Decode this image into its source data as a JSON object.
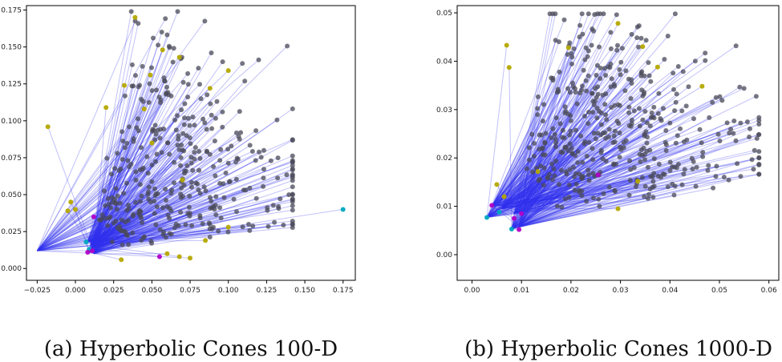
{
  "chart_data": [
    {
      "type": "scatter",
      "title": "",
      "caption": "(a) Hyperbolic Cones 100-D",
      "xlabel": "",
      "ylabel": "",
      "xlim": [
        -0.032,
        0.183
      ],
      "ylim": [
        -0.008,
        0.178
      ],
      "xticks": [
        -0.025,
        0.0,
        0.025,
        0.05,
        0.075,
        0.1,
        0.125,
        0.15,
        0.175
      ],
      "xtick_labels": [
        "−0.025",
        "0.000",
        "0.025",
        "0.050",
        "0.075",
        "0.100",
        "0.125",
        "0.150",
        "0.175"
      ],
      "yticks": [
        0.0,
        0.025,
        0.05,
        0.075,
        0.1,
        0.125,
        0.15,
        0.175
      ],
      "ytick_labels": [
        "0.000",
        "0.025",
        "0.050",
        "0.075",
        "0.100",
        "0.125",
        "0.150",
        "0.175"
      ],
      "grid": false,
      "edge_color": "#3333ee",
      "point_colors": {
        "gray": "#4a4a5a",
        "yellow": "#b5a800",
        "cyan": "#00a8c0",
        "magenta": "#b000c8"
      },
      "origin_points": [
        [
          -0.025,
          0.012
        ],
        [
          0.008,
          0.018
        ],
        [
          0.011,
          0.014
        ],
        [
          0.009,
          0.011
        ],
        [
          0.012,
          0.01
        ],
        [
          0.01,
          0.016
        ]
      ],
      "highlight_points": [
        {
          "x": 0.175,
          "y": 0.04,
          "color": "cyan"
        },
        {
          "x": 0.007,
          "y": 0.018,
          "color": "cyan"
        },
        {
          "x": 0.009,
          "y": 0.013,
          "color": "cyan"
        },
        {
          "x": 0.008,
          "y": 0.011,
          "color": "magenta"
        },
        {
          "x": 0.011,
          "y": 0.012,
          "color": "magenta"
        },
        {
          "x": 0.012,
          "y": 0.035,
          "color": "magenta"
        },
        {
          "x": 0.055,
          "y": 0.008,
          "color": "magenta"
        },
        {
          "x": 0.039,
          "y": 0.17,
          "color": "yellow"
        },
        {
          "x": 0.057,
          "y": 0.148,
          "color": "yellow"
        },
        {
          "x": 0.068,
          "y": 0.143,
          "color": "yellow"
        },
        {
          "x": 0.1,
          "y": 0.134,
          "color": "yellow"
        },
        {
          "x": 0.049,
          "y": 0.131,
          "color": "yellow"
        },
        {
          "x": -0.018,
          "y": 0.096,
          "color": "yellow"
        },
        {
          "x": 0.032,
          "y": 0.124,
          "color": "yellow"
        },
        {
          "x": 0.02,
          "y": 0.109,
          "color": "yellow"
        },
        {
          "x": 0.045,
          "y": 0.108,
          "color": "yellow"
        },
        {
          "x": 0.088,
          "y": 0.122,
          "color": "yellow"
        },
        {
          "x": -0.005,
          "y": 0.039,
          "color": "yellow"
        },
        {
          "x": -0.003,
          "y": 0.045,
          "color": "yellow"
        },
        {
          "x": 0.0,
          "y": 0.04,
          "color": "yellow"
        },
        {
          "x": 0.06,
          "y": 0.01,
          "color": "yellow"
        },
        {
          "x": 0.068,
          "y": 0.008,
          "color": "yellow"
        },
        {
          "x": 0.075,
          "y": 0.007,
          "color": "yellow"
        },
        {
          "x": 0.085,
          "y": 0.019,
          "color": "yellow"
        },
        {
          "x": 0.1,
          "y": 0.028,
          "color": "yellow"
        },
        {
          "x": 0.03,
          "y": 0.006,
          "color": "yellow"
        },
        {
          "x": 0.05,
          "y": 0.085,
          "color": "yellow"
        },
        {
          "x": 0.07,
          "y": 0.06,
          "color": "yellow"
        }
      ],
      "cloud": {
        "n": 380,
        "x_range": [
          -0.015,
          0.142
        ],
        "y_range": [
          -0.006,
          0.174
        ],
        "seed": 7
      }
    },
    {
      "type": "scatter",
      "title": "",
      "caption": "(b) Hyperbolic Cones 1000-D",
      "xlabel": "",
      "ylabel": "",
      "xlim": [
        -0.003,
        0.062
      ],
      "ylim": [
        -0.0053,
        0.0515
      ],
      "xticks": [
        0.0,
        0.01,
        0.02,
        0.03,
        0.04,
        0.05,
        0.06
      ],
      "xtick_labels": [
        "0.00",
        "0.01",
        "0.02",
        "0.03",
        "0.04",
        "0.05",
        "0.06"
      ],
      "yticks": [
        0.0,
        0.01,
        0.02,
        0.03,
        0.04,
        0.05
      ],
      "ytick_labels": [
        "0.00",
        "0.01",
        "0.02",
        "0.03",
        "0.04",
        "0.05"
      ],
      "grid": false,
      "edge_color": "#3333ee",
      "point_colors": {
        "gray": "#4a4a5a",
        "yellow": "#b5a800",
        "cyan": "#00a8c0",
        "magenta": "#b000c8"
      },
      "origin_points": [
        [
          0.003,
          0.0077
        ],
        [
          0.008,
          0.0053
        ],
        [
          0.0095,
          0.0058
        ],
        [
          0.004,
          0.01
        ],
        [
          0.006,
          0.0095
        ],
        [
          0.0085,
          0.0085
        ]
      ],
      "highlight_points": [
        {
          "x": 0.003,
          "y": 0.0077,
          "color": "cyan"
        },
        {
          "x": 0.008,
          "y": 0.0053,
          "color": "cyan"
        },
        {
          "x": 0.0055,
          "y": 0.0088,
          "color": "cyan"
        },
        {
          "x": 0.0095,
          "y": 0.0052,
          "color": "magenta"
        },
        {
          "x": 0.004,
          "y": 0.0102,
          "color": "magenta"
        },
        {
          "x": 0.0085,
          "y": 0.0075,
          "color": "magenta"
        },
        {
          "x": 0.01,
          "y": 0.0085,
          "color": "magenta"
        },
        {
          "x": 0.0255,
          "y": 0.0165,
          "color": "magenta"
        },
        {
          "x": 0.007,
          "y": 0.0433,
          "color": "yellow"
        },
        {
          "x": 0.0295,
          "y": 0.0478,
          "color": "yellow"
        },
        {
          "x": 0.0345,
          "y": 0.043,
          "color": "yellow"
        },
        {
          "x": 0.0195,
          "y": 0.0428,
          "color": "yellow"
        },
        {
          "x": 0.0465,
          "y": 0.0348,
          "color": "yellow"
        },
        {
          "x": 0.0335,
          "y": 0.0152,
          "color": "yellow"
        },
        {
          "x": 0.0375,
          "y": 0.0388,
          "color": "yellow"
        },
        {
          "x": 0.0075,
          "y": 0.0387,
          "color": "yellow"
        },
        {
          "x": 0.0133,
          "y": 0.0172,
          "color": "yellow"
        },
        {
          "x": 0.0065,
          "y": 0.012,
          "color": "yellow"
        },
        {
          "x": 0.0295,
          "y": 0.0095,
          "color": "yellow"
        },
        {
          "x": 0.005,
          "y": 0.0145,
          "color": "yellow"
        }
      ],
      "cloud": {
        "n": 430,
        "x_range": [
          0.003,
          0.058
        ],
        "y_range": [
          0.008,
          0.0498
        ],
        "seed": 19
      }
    }
  ]
}
